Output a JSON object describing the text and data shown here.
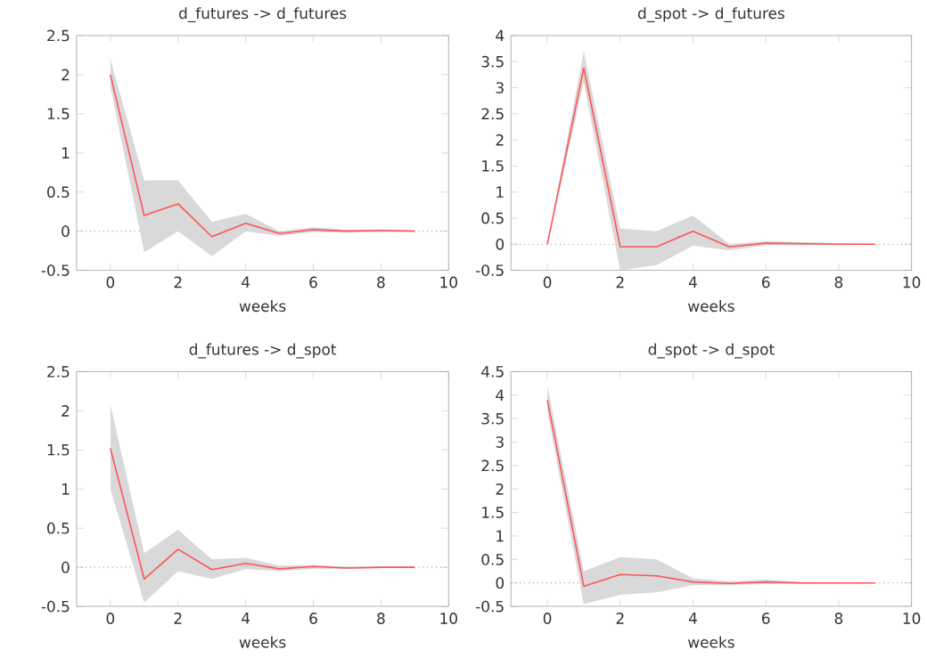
{
  "chart_data": [
    {
      "type": "line",
      "title": "d_futures -> d_futures",
      "xlabel": "weeks",
      "x": [
        0,
        1,
        2,
        3,
        4,
        5,
        6,
        7,
        8,
        9
      ],
      "xlim": [
        -1,
        10
      ],
      "xticks": [
        0,
        2,
        4,
        6,
        8,
        10
      ],
      "ylim": [
        -0.5,
        2.5
      ],
      "yticks": [
        -0.5,
        0,
        0.5,
        1,
        1.5,
        2,
        2.5
      ],
      "grid": false,
      "ref_lines": [
        {
          "axis": "y",
          "value": 0,
          "color": "#808080",
          "line_style": "dotted"
        }
      ],
      "series": [
        {
          "color": "#ff5555",
          "values": [
            2.0,
            0.2,
            0.35,
            -0.07,
            0.1,
            -0.03,
            0.02,
            0.0,
            0.01,
            0.0
          ],
          "lower": [
            1.85,
            -0.27,
            0.0,
            -0.32,
            0.0,
            -0.06,
            -0.01,
            -0.02,
            -0.01,
            -0.01
          ],
          "upper": [
            2.2,
            0.65,
            0.65,
            0.12,
            0.22,
            0.0,
            0.05,
            0.02,
            0.02,
            0.01
          ]
        }
      ]
    },
    {
      "type": "line",
      "title": "d_spot -> d_futures",
      "xlabel": "weeks",
      "x": [
        0,
        1,
        2,
        3,
        4,
        5,
        6,
        7,
        8,
        9
      ],
      "xlim": [
        -1,
        10
      ],
      "xticks": [
        0,
        2,
        4,
        6,
        8,
        10
      ],
      "ylim": [
        -0.5,
        4
      ],
      "yticks": [
        -0.5,
        0,
        0.5,
        1,
        1.5,
        2,
        2.5,
        3,
        3.5,
        4
      ],
      "grid": false,
      "ref_lines": [
        {
          "axis": "y",
          "value": 0,
          "color": "#808080",
          "line_style": "dotted"
        }
      ],
      "series": [
        {
          "color": "#ff5555",
          "values": [
            0.0,
            3.38,
            -0.05,
            -0.05,
            0.25,
            -0.05,
            0.02,
            0.01,
            0.0,
            0.0
          ],
          "lower": [
            0.0,
            3.1,
            -0.5,
            -0.4,
            -0.03,
            -0.12,
            -0.02,
            -0.02,
            -0.01,
            -0.01
          ],
          "upper": [
            0.0,
            3.7,
            0.3,
            0.25,
            0.55,
            0.0,
            0.06,
            0.04,
            0.02,
            0.01
          ]
        }
      ]
    },
    {
      "type": "line",
      "title": "d_futures -> d_spot",
      "xlabel": "weeks",
      "x": [
        0,
        1,
        2,
        3,
        4,
        5,
        6,
        7,
        8,
        9
      ],
      "xlim": [
        -1,
        10
      ],
      "xticks": [
        0,
        2,
        4,
        6,
        8,
        10
      ],
      "ylim": [
        -0.5,
        2.5
      ],
      "yticks": [
        -0.5,
        0,
        0.5,
        1,
        1.5,
        2,
        2.5
      ],
      "grid": false,
      "ref_lines": [
        {
          "axis": "y",
          "value": 0,
          "color": "#808080",
          "line_style": "dotted"
        }
      ],
      "series": [
        {
          "color": "#ff5555",
          "values": [
            1.52,
            -0.15,
            0.23,
            -0.03,
            0.05,
            -0.02,
            0.01,
            -0.01,
            0.0,
            0.0
          ],
          "lower": [
            1.0,
            -0.45,
            -0.05,
            -0.15,
            -0.02,
            -0.05,
            -0.02,
            -0.02,
            -0.01,
            -0.01
          ],
          "upper": [
            2.08,
            0.18,
            0.48,
            0.1,
            0.12,
            0.02,
            0.03,
            0.01,
            0.01,
            0.01
          ]
        }
      ]
    },
    {
      "type": "line",
      "title": "d_spot -> d_spot",
      "xlabel": "weeks",
      "x": [
        0,
        1,
        2,
        3,
        4,
        5,
        6,
        7,
        8,
        9
      ],
      "xlim": [
        -1,
        10
      ],
      "xticks": [
        0,
        2,
        4,
        6,
        8,
        10
      ],
      "ylim": [
        -0.5,
        4.5
      ],
      "yticks": [
        -0.5,
        0,
        0.5,
        1,
        1.5,
        2,
        2.5,
        3,
        3.5,
        4,
        4.5
      ],
      "grid": false,
      "ref_lines": [
        {
          "axis": "y",
          "value": 0,
          "color": "#808080",
          "line_style": "dotted"
        }
      ],
      "series": [
        {
          "color": "#ff5555",
          "values": [
            3.9,
            -0.07,
            0.18,
            0.15,
            0.02,
            -0.01,
            0.02,
            0.0,
            0.0,
            0.0
          ],
          "lower": [
            3.65,
            -0.45,
            -0.25,
            -0.2,
            -0.05,
            -0.05,
            -0.02,
            -0.02,
            -0.01,
            -0.01
          ],
          "upper": [
            4.2,
            0.25,
            0.55,
            0.5,
            0.1,
            0.03,
            0.07,
            0.02,
            0.01,
            0.01
          ]
        }
      ]
    }
  ]
}
